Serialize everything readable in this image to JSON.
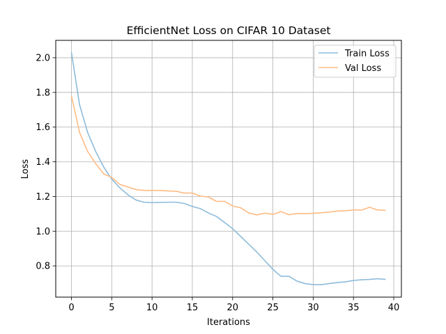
{
  "chart_data": {
    "type": "line",
    "title": "EfficientNet Loss on CIFAR 10 Dataset",
    "xlabel": "Iterations",
    "ylabel": "Loss",
    "xlim": [
      -1.95,
      40.95
    ],
    "ylim": [
      0.62,
      2.1
    ],
    "xticks": [
      0,
      5,
      10,
      15,
      20,
      25,
      30,
      35,
      40
    ],
    "yticks": [
      0.8,
      1.0,
      1.2,
      1.4,
      1.6,
      1.8,
      2.0
    ],
    "xtick_labels": [
      "0",
      "5",
      "10",
      "15",
      "20",
      "25",
      "30",
      "35",
      "40"
    ],
    "ytick_labels": [
      "0.8",
      "1.0",
      "1.2",
      "1.4",
      "1.6",
      "1.8",
      "2.0"
    ],
    "grid": true,
    "legend_position": "top-right",
    "x": [
      0,
      1,
      2,
      3,
      4,
      5,
      6,
      7,
      8,
      9,
      10,
      11,
      12,
      13,
      14,
      15,
      16,
      17,
      18,
      19,
      20,
      21,
      22,
      23,
      24,
      25,
      26,
      27,
      28,
      29,
      30,
      31,
      32,
      33,
      34,
      35,
      36,
      37,
      38,
      39
    ],
    "series": [
      {
        "name": "Train Loss",
        "color": "#8dbbda",
        "values": [
          2.03,
          1.73,
          1.57,
          1.46,
          1.37,
          1.3,
          1.25,
          1.21,
          1.18,
          1.167,
          1.165,
          1.166,
          1.167,
          1.167,
          1.16,
          1.143,
          1.13,
          1.105,
          1.085,
          1.05,
          1.015,
          0.97,
          0.925,
          0.88,
          0.83,
          0.78,
          0.74,
          0.74,
          0.712,
          0.698,
          0.692,
          0.692,
          0.698,
          0.704,
          0.708,
          0.716,
          0.72,
          0.722,
          0.726,
          0.722
        ]
      },
      {
        "name": "Val Loss",
        "color": "#ffbb83",
        "values": [
          1.78,
          1.57,
          1.46,
          1.39,
          1.33,
          1.31,
          1.27,
          1.255,
          1.24,
          1.235,
          1.235,
          1.235,
          1.232,
          1.23,
          1.22,
          1.22,
          1.202,
          1.197,
          1.172,
          1.172,
          1.145,
          1.135,
          1.105,
          1.094,
          1.104,
          1.097,
          1.113,
          1.095,
          1.102,
          1.101,
          1.103,
          1.106,
          1.11,
          1.116,
          1.118,
          1.122,
          1.122,
          1.138,
          1.122,
          1.12
        ]
      }
    ]
  }
}
